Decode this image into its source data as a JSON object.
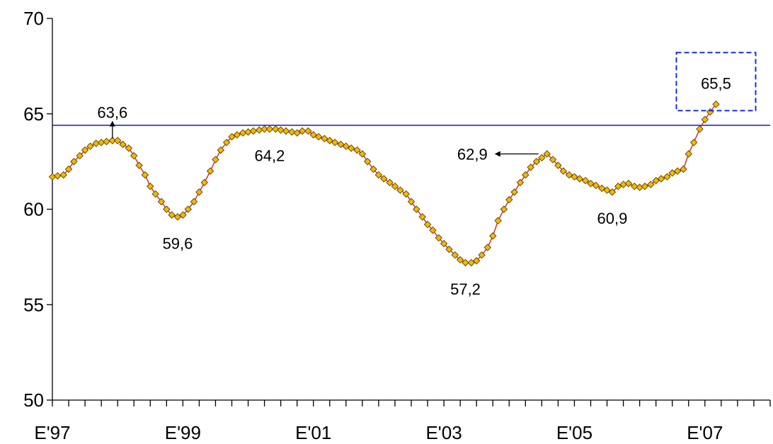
{
  "chart_data": {
    "type": "line",
    "title": "",
    "xlabel": "",
    "ylabel": "",
    "ylim": [
      50,
      70
    ],
    "y_ticks": [
      "50",
      "55",
      "60",
      "65",
      "70"
    ],
    "x_tick_labels": [
      "E'97",
      "E'99",
      "E'01",
      "E'03",
      "E'05",
      "E'07"
    ],
    "x_range": [
      1997.0,
      2008.0
    ],
    "reference_line": {
      "value": 64.4,
      "color": "#0000cc"
    },
    "line_color": "#cc3333",
    "marker_fill": "#f5b800",
    "marker_stroke": "#5a4000",
    "highlight_box_color": "#1a2fd6",
    "series": [
      {
        "points": [
          [
            1997.0,
            61.7
          ],
          [
            1997.08,
            61.75
          ],
          [
            1997.17,
            61.8
          ],
          [
            1997.25,
            62.1
          ],
          [
            1997.33,
            62.5
          ],
          [
            1997.42,
            62.8
          ],
          [
            1997.5,
            63.1
          ],
          [
            1997.58,
            63.3
          ],
          [
            1997.67,
            63.45
          ],
          [
            1997.75,
            63.5
          ],
          [
            1997.83,
            63.55
          ],
          [
            1997.92,
            63.6
          ],
          [
            1998.0,
            63.6
          ],
          [
            1998.08,
            63.4
          ],
          [
            1998.17,
            63.2
          ],
          [
            1998.25,
            62.8
          ],
          [
            1998.33,
            62.3
          ],
          [
            1998.42,
            61.8
          ],
          [
            1998.5,
            61.2
          ],
          [
            1998.58,
            60.8
          ],
          [
            1998.67,
            60.4
          ],
          [
            1998.75,
            60.0
          ],
          [
            1998.83,
            59.7
          ],
          [
            1998.92,
            59.6
          ],
          [
            1999.0,
            59.7
          ],
          [
            1999.08,
            60.0
          ],
          [
            1999.17,
            60.4
          ],
          [
            1999.25,
            60.9
          ],
          [
            1999.33,
            61.4
          ],
          [
            1999.42,
            62.0
          ],
          [
            1999.5,
            62.6
          ],
          [
            1999.58,
            63.1
          ],
          [
            1999.67,
            63.5
          ],
          [
            1999.75,
            63.8
          ],
          [
            1999.83,
            63.9
          ],
          [
            1999.92,
            64.0
          ],
          [
            2000.0,
            64.05
          ],
          [
            2000.08,
            64.1
          ],
          [
            2000.17,
            64.15
          ],
          [
            2000.25,
            64.2
          ],
          [
            2000.33,
            64.2
          ],
          [
            2000.42,
            64.2
          ],
          [
            2000.5,
            64.15
          ],
          [
            2000.58,
            64.1
          ],
          [
            2000.67,
            64.05
          ],
          [
            2000.75,
            64.0
          ],
          [
            2000.83,
            64.1
          ],
          [
            2000.92,
            64.1
          ],
          [
            2001.0,
            63.9
          ],
          [
            2001.08,
            63.8
          ],
          [
            2001.17,
            63.7
          ],
          [
            2001.25,
            63.6
          ],
          [
            2001.33,
            63.5
          ],
          [
            2001.42,
            63.4
          ],
          [
            2001.5,
            63.3
          ],
          [
            2001.58,
            63.2
          ],
          [
            2001.67,
            63.1
          ],
          [
            2001.75,
            62.9
          ],
          [
            2001.83,
            62.5
          ],
          [
            2001.92,
            62.1
          ],
          [
            2002.0,
            61.8
          ],
          [
            2002.08,
            61.6
          ],
          [
            2002.17,
            61.4
          ],
          [
            2002.25,
            61.2
          ],
          [
            2002.33,
            61.0
          ],
          [
            2002.42,
            60.8
          ],
          [
            2002.5,
            60.4
          ],
          [
            2002.58,
            60.0
          ],
          [
            2002.67,
            59.6
          ],
          [
            2002.75,
            59.2
          ],
          [
            2002.83,
            58.9
          ],
          [
            2002.92,
            58.5
          ],
          [
            2003.0,
            58.2
          ],
          [
            2003.08,
            57.9
          ],
          [
            2003.17,
            57.6
          ],
          [
            2003.25,
            57.35
          ],
          [
            2003.33,
            57.2
          ],
          [
            2003.42,
            57.2
          ],
          [
            2003.5,
            57.3
          ],
          [
            2003.58,
            57.6
          ],
          [
            2003.67,
            58.0
          ],
          [
            2003.75,
            58.6
          ],
          [
            2003.83,
            59.4
          ],
          [
            2003.92,
            60.0
          ],
          [
            2004.0,
            60.5
          ],
          [
            2004.08,
            60.9
          ],
          [
            2004.17,
            61.4
          ],
          [
            2004.25,
            61.8
          ],
          [
            2004.33,
            62.2
          ],
          [
            2004.42,
            62.5
          ],
          [
            2004.5,
            62.7
          ],
          [
            2004.58,
            62.9
          ],
          [
            2004.67,
            62.6
          ],
          [
            2004.75,
            62.3
          ],
          [
            2004.83,
            62.0
          ],
          [
            2004.92,
            61.8
          ],
          [
            2005.0,
            61.7
          ],
          [
            2005.08,
            61.6
          ],
          [
            2005.17,
            61.5
          ],
          [
            2005.25,
            61.35
          ],
          [
            2005.33,
            61.25
          ],
          [
            2005.42,
            61.1
          ],
          [
            2005.5,
            61.0
          ],
          [
            2005.58,
            60.9
          ],
          [
            2005.67,
            61.2
          ],
          [
            2005.75,
            61.3
          ],
          [
            2005.83,
            61.35
          ],
          [
            2005.92,
            61.2
          ],
          [
            2006.0,
            61.15
          ],
          [
            2006.08,
            61.2
          ],
          [
            2006.17,
            61.3
          ],
          [
            2006.25,
            61.5
          ],
          [
            2006.33,
            61.6
          ],
          [
            2006.42,
            61.7
          ],
          [
            2006.5,
            61.9
          ],
          [
            2006.58,
            62.0
          ],
          [
            2006.67,
            62.1
          ],
          [
            2006.75,
            62.9
          ],
          [
            2006.83,
            63.5
          ],
          [
            2006.92,
            64.2
          ],
          [
            2007.0,
            64.7
          ],
          [
            2007.08,
            65.1
          ],
          [
            2007.17,
            65.5
          ]
        ]
      }
    ],
    "annotations": [
      {
        "label": "63,6",
        "x": 1997.92,
        "y": 63.6,
        "position": "above",
        "arrow": "up"
      },
      {
        "label": "59,6",
        "x": 1998.92,
        "y": 59.6,
        "position": "below"
      },
      {
        "label": "64,2",
        "x": 2000.33,
        "y": 64.2,
        "position": "below"
      },
      {
        "label": "57,2",
        "x": 2003.33,
        "y": 57.2,
        "position": "below"
      },
      {
        "label": "62,9",
        "x": 2004.58,
        "y": 62.9,
        "position": "left",
        "arrow": "left"
      },
      {
        "label": "60,9",
        "x": 2005.58,
        "y": 60.9,
        "position": "below"
      },
      {
        "label": "65,5",
        "x": 2007.17,
        "y": 65.5,
        "position": "above",
        "boxed": true
      }
    ]
  }
}
